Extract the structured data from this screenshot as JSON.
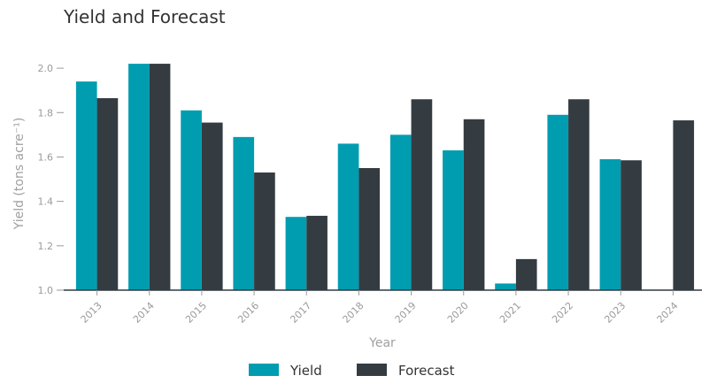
{
  "chart_data": {
    "type": "bar",
    "title": "Yield and Forecast",
    "xlabel": "Year",
    "ylabel": "Yield (tons acre⁻¹)",
    "categories": [
      "2013",
      "2014",
      "2015",
      "2016",
      "2017",
      "2018",
      "2019",
      "2020",
      "2021",
      "2022",
      "2023",
      "2024"
    ],
    "series": [
      {
        "name": "Yield",
        "color": "#009DB0",
        "values": [
          1.94,
          2.02,
          1.81,
          1.69,
          1.33,
          1.66,
          1.7,
          1.63,
          1.03,
          1.79,
          1.59,
          null
        ]
      },
      {
        "name": "Forecast",
        "color": "#343C42",
        "values": [
          1.865,
          2.02,
          1.755,
          1.53,
          1.335,
          1.55,
          1.86,
          1.77,
          1.14,
          1.86,
          1.585,
          1.765
        ]
      }
    ],
    "ylim": [
      1.0,
      2.1
    ],
    "yticks": [
      "1.0",
      "1.2",
      "1.4",
      "1.6",
      "1.8",
      "2.0"
    ],
    "grid": false,
    "legend": "bottom-center"
  }
}
